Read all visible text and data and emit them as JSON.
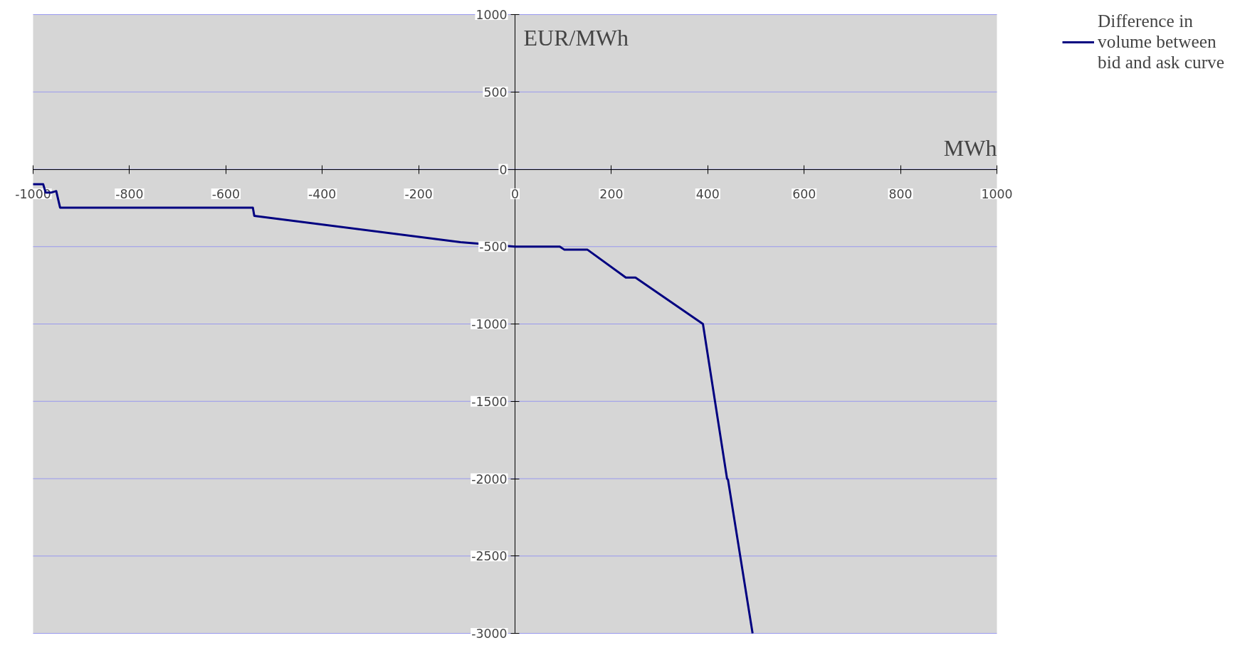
{
  "chart_data": {
    "type": "line",
    "xlabel": "MWh",
    "ylabel": "EUR/MWh",
    "x": [
      -1000,
      -979,
      -974,
      -962,
      -952,
      -944,
      -544,
      -541,
      -113,
      0,
      93,
      102,
      150,
      230,
      250,
      390,
      440,
      442,
      493
    ],
    "series": [
      {
        "name": "Difference in volume between bid and ask curve",
        "color": "#000080",
        "values": [
          -97,
          -97,
          -150,
          -150,
          -141,
          -248,
          -248,
          -301,
          -471,
          -500,
          -500,
          -519,
          -519,
          -700,
          -700,
          -1000,
          -2000,
          -2007,
          -3000
        ]
      }
    ],
    "xlim": [
      -1000,
      1000
    ],
    "ylim": [
      -3000,
      1000
    ],
    "xticks": [
      -1000,
      -800,
      -600,
      -400,
      -200,
      0,
      200,
      400,
      600,
      800,
      1000
    ],
    "yticks": [
      -3000,
      -2500,
      -2000,
      -1500,
      -1000,
      -500,
      0,
      500,
      1000
    ],
    "grid": "y",
    "legend": "top right",
    "marker": "none",
    "line_style": "solid"
  }
}
